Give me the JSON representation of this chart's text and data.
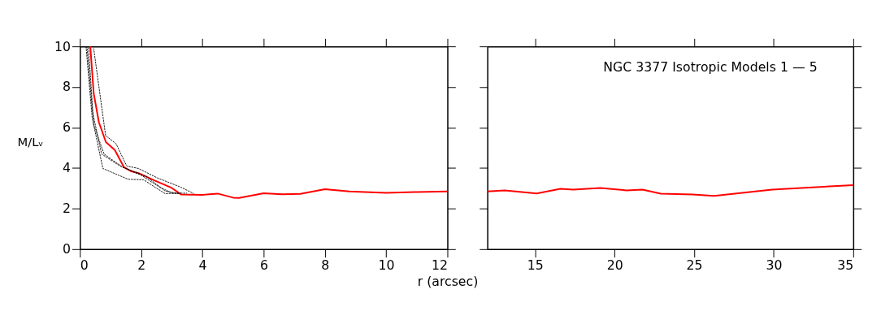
{
  "chart_data": [
    {
      "type": "line",
      "xlabel": "r (arcsec)",
      "ylabel": "M/Lᵥ",
      "xlim": [
        0,
        12
      ],
      "xticks": [
        0,
        2,
        4,
        6,
        8,
        10,
        12
      ],
      "ylim": [
        0,
        10
      ],
      "yticks": [
        0,
        2,
        4,
        6,
        8,
        10
      ],
      "grid": false,
      "marker": "none",
      "series": [
        {
          "color": "#ff0000",
          "line_style": "solid",
          "x": [
            0.34,
            0.45,
            0.62,
            0.85,
            1.14,
            1.44,
            1.66,
            1.91,
            2.43,
            3.0,
            3.3,
            4.0,
            4.5,
            5.0,
            5.2,
            6.0,
            6.6,
            7.2,
            8.0,
            8.8,
            10,
            11,
            12
          ],
          "values": [
            10,
            7.7,
            6.26,
            5.28,
            4.89,
            4.04,
            3.85,
            3.75,
            3.39,
            3.02,
            2.7,
            2.68,
            2.74,
            2.54,
            2.53,
            2.76,
            2.71,
            2.73,
            2.96,
            2.85,
            2.78,
            2.82,
            2.85
          ]
        },
        {
          "color": "#000000",
          "line_style": "dashed",
          "x": [
            0.2,
            0.4,
            0.75,
            1.57,
            2.08,
            2.78,
            3.3
          ],
          "values": [
            10,
            6.5,
            3.98,
            3.45,
            3.42,
            2.74,
            2.76
          ]
        },
        {
          "color": "#000000",
          "line_style": "dashed",
          "x": [
            0.28,
            0.45,
            0.79,
            1.4,
            2.0,
            2.6,
            3.03,
            3.5
          ],
          "values": [
            10,
            6.13,
            4.69,
            4.04,
            3.65,
            3.06,
            2.76,
            2.76
          ]
        },
        {
          "color": "#000000",
          "line_style": "dashed",
          "x": [
            0.45,
            0.84,
            1.18,
            1.53,
            1.91,
            2.52,
            3.29,
            3.72
          ],
          "values": [
            9.9,
            5.6,
            5.2,
            4.1,
            3.98,
            3.52,
            3.06,
            2.74
          ]
        },
        {
          "color": "#000000",
          "line_style": "dashed",
          "x": [
            0.23,
            0.41,
            0.71,
            1.31,
            2.17,
            2.78,
            3.2
          ],
          "values": [
            10,
            6.78,
            4.69,
            4.1,
            3.59,
            2.87,
            2.74
          ]
        }
      ]
    },
    {
      "type": "line",
      "annotations": [
        "NGC 3377 Isotropic Models 1 — 5"
      ],
      "xlim": [
        12,
        35
      ],
      "xticks": [
        15,
        20,
        25,
        30,
        35
      ],
      "ylim": [
        0,
        10
      ],
      "yticks": [
        0,
        2,
        4,
        6,
        8,
        10
      ],
      "tick_labels": "x",
      "grid": false,
      "marker": "none",
      "series": [
        {
          "color": "#ff0000",
          "line_style": "solid",
          "x": [
            12,
            13.1,
            15.1,
            16.6,
            17.4,
            19.1,
            20.75,
            21.75,
            22.9,
            24.9,
            26.25,
            29.9,
            35
          ],
          "values": [
            2.85,
            2.9,
            2.75,
            2.98,
            2.94,
            3.02,
            2.9,
            2.94,
            2.74,
            2.7,
            2.63,
            2.94,
            3.16
          ]
        }
      ]
    }
  ]
}
